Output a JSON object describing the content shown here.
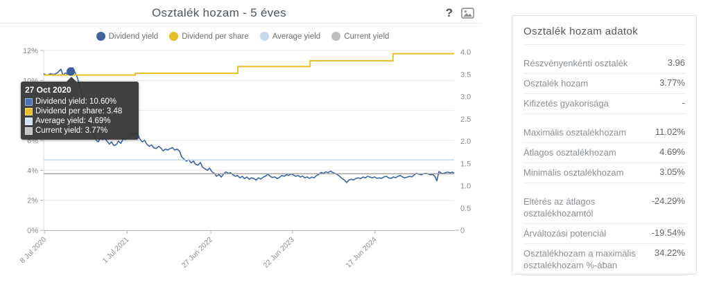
{
  "header": {
    "title": "Osztalék hozam - 5 éves",
    "help_icon": "?",
    "image_icon": "export-image"
  },
  "legend": [
    {
      "label": "Dividend yield",
      "color": "#41639c"
    },
    {
      "label": "Dividend per share",
      "color": "#e5bf2b"
    },
    {
      "label": "Average yield",
      "color": "#c7d8eb"
    },
    {
      "label": "Current yield",
      "color": "#bdbdbd"
    }
  ],
  "tooltip": {
    "date": "27 Oct 2020",
    "rows": [
      {
        "label": "Dividend yield",
        "value": "10.60%",
        "color": "#4a72b8"
      },
      {
        "label": "Dividend per share",
        "value": "3.48",
        "color": "#e9c229"
      },
      {
        "label": "Average yield",
        "value": "4.69%",
        "color": "#d3e2f2"
      },
      {
        "label": "Current yield",
        "value": "3.77%",
        "color": "#c4c4c4"
      }
    ]
  },
  "chart_data": {
    "type": "line",
    "title": "Osztalék hozam - 5 éves",
    "grid": true,
    "legend_position": "top",
    "y_left": {
      "unit": "%",
      "min": 0,
      "max": 12,
      "ticks": [
        0,
        2,
        4,
        6,
        8,
        10,
        12
      ]
    },
    "y_right": {
      "unit": "",
      "min": 0,
      "max": 4,
      "ticks": [
        0,
        0.5,
        1,
        1.5,
        2,
        2.5,
        3,
        3.5,
        4
      ]
    },
    "x_ticks": [
      {
        "label": "8 Jul 2020",
        "pos": 0.002
      },
      {
        "label": "1 Jul 2021",
        "pos": 0.203
      },
      {
        "label": "27 Jun 2022",
        "pos": 0.407
      },
      {
        "label": "22 Jun 2023",
        "pos": 0.606
      },
      {
        "label": "17 Jun 2024",
        "pos": 0.807
      }
    ],
    "marker": {
      "series": "Dividend yield",
      "pos": 0.066,
      "value": 10.6,
      "date": "27 Oct 2020"
    },
    "series": [
      {
        "name": "Dividend yield",
        "axis": "left",
        "color": "#3e63a4",
        "style": "line",
        "points": [
          [
            0,
            10.45
          ],
          [
            0.008,
            10.35
          ],
          [
            0.016,
            10.45
          ],
          [
            0.025,
            10.4
          ],
          [
            0.034,
            10.52
          ],
          [
            0.042,
            10.75
          ],
          [
            0.047,
            10.35
          ],
          [
            0.053,
            10.5
          ],
          [
            0.059,
            10.42
          ],
          [
            0.066,
            10.6
          ],
          [
            0.071,
            10.85
          ],
          [
            0.076,
            10.55
          ],
          [
            0.082,
            10.2
          ],
          [
            0.09,
            9.4
          ],
          [
            0.099,
            8.3
          ],
          [
            0.108,
            7.3
          ],
          [
            0.117,
            6.7
          ],
          [
            0.122,
            6.45
          ],
          [
            0.128,
            6
          ],
          [
            0.133,
            5.9
          ],
          [
            0.138,
            6.15
          ],
          [
            0.143,
            6.05
          ],
          [
            0.149,
            6.15
          ],
          [
            0.154,
            5.95
          ],
          [
            0.16,
            5.75
          ],
          [
            0.165,
            5.9
          ],
          [
            0.171,
            5.65
          ],
          [
            0.177,
            5.72
          ],
          [
            0.182,
            5.95
          ],
          [
            0.188,
            5.8
          ],
          [
            0.194,
            6.1
          ],
          [
            0.2,
            6.05
          ],
          [
            0.207,
            6.3
          ],
          [
            0.213,
            6.55
          ],
          [
            0.218,
            6.35
          ],
          [
            0.223,
            6.5
          ],
          [
            0.229,
            6.45
          ],
          [
            0.234,
            6.1
          ],
          [
            0.24,
            5.9
          ],
          [
            0.246,
            6
          ],
          [
            0.251,
            5.75
          ],
          [
            0.257,
            5.6
          ],
          [
            0.263,
            5.7
          ],
          [
            0.268,
            5.5
          ],
          [
            0.274,
            5.45
          ],
          [
            0.28,
            5.6
          ],
          [
            0.285,
            5.5
          ],
          [
            0.291,
            5.3
          ],
          [
            0.297,
            5.42
          ],
          [
            0.302,
            5.35
          ],
          [
            0.308,
            5.45
          ],
          [
            0.314,
            5.52
          ],
          [
            0.319,
            5.35
          ],
          [
            0.325,
            5.42
          ],
          [
            0.331,
            5.28
          ],
          [
            0.336,
            4.9
          ],
          [
            0.342,
            4.75
          ],
          [
            0.348,
            4.6
          ],
          [
            0.353,
            4.72
          ],
          [
            0.359,
            4.5
          ],
          [
            0.365,
            4.62
          ],
          [
            0.37,
            4.4
          ],
          [
            0.376,
            4.35
          ],
          [
            0.382,
            4.52
          ],
          [
            0.387,
            4.2
          ],
          [
            0.393,
            4.1
          ],
          [
            0.399,
            4
          ],
          [
            0.404,
            4.15
          ],
          [
            0.41,
            3.9
          ],
          [
            0.416,
            3.8
          ],
          [
            0.421,
            3.6
          ],
          [
            0.427,
            3.72
          ],
          [
            0.433,
            3.55
          ],
          [
            0.438,
            3.75
          ],
          [
            0.444,
            3.9
          ],
          [
            0.45,
            3.8
          ],
          [
            0.455,
            3.85
          ],
          [
            0.461,
            3.7
          ],
          [
            0.467,
            3.6
          ],
          [
            0.472,
            3.66
          ],
          [
            0.478,
            3.5
          ],
          [
            0.484,
            3.6
          ],
          [
            0.489,
            3.45
          ],
          [
            0.495,
            3.55
          ],
          [
            0.501,
            3.4
          ],
          [
            0.506,
            3.5
          ],
          [
            0.512,
            3.45
          ],
          [
            0.518,
            3.35
          ],
          [
            0.523,
            3.5
          ],
          [
            0.529,
            3.42
          ],
          [
            0.535,
            3.55
          ],
          [
            0.54,
            3.6
          ],
          [
            0.546,
            3.75
          ],
          [
            0.552,
            3.6
          ],
          [
            0.557,
            3.52
          ],
          [
            0.563,
            3.56
          ],
          [
            0.569,
            3.45
          ],
          [
            0.574,
            3.52
          ],
          [
            0.58,
            3.65
          ],
          [
            0.586,
            3.6
          ],
          [
            0.591,
            3.7
          ],
          [
            0.597,
            3.66
          ],
          [
            0.603,
            3.76
          ],
          [
            0.608,
            3.7
          ],
          [
            0.614,
            3.6
          ],
          [
            0.62,
            3.66
          ],
          [
            0.625,
            3.55
          ],
          [
            0.631,
            3.62
          ],
          [
            0.636,
            3.5
          ],
          [
            0.642,
            3.56
          ],
          [
            0.648,
            3.46
          ],
          [
            0.653,
            3.55
          ],
          [
            0.659,
            3.5
          ],
          [
            0.665,
            3.66
          ],
          [
            0.67,
            3.72
          ],
          [
            0.676,
            3.86
          ],
          [
            0.682,
            3.8
          ],
          [
            0.687,
            3.9
          ],
          [
            0.693,
            3.85
          ],
          [
            0.699,
            3.95
          ],
          [
            0.704,
            3.86
          ],
          [
            0.71,
            3.8
          ],
          [
            0.716,
            3.7
          ],
          [
            0.721,
            3.6
          ],
          [
            0.727,
            3.45
          ],
          [
            0.733,
            3.35
          ],
          [
            0.738,
            3.18
          ],
          [
            0.744,
            3.36
          ],
          [
            0.75,
            3.4
          ],
          [
            0.755,
            3.35
          ],
          [
            0.761,
            3.46
          ],
          [
            0.767,
            3.5
          ],
          [
            0.772,
            3.44
          ],
          [
            0.778,
            3.55
          ],
          [
            0.784,
            3.5
          ],
          [
            0.789,
            3.6
          ],
          [
            0.795,
            3.55
          ],
          [
            0.801,
            3.5
          ],
          [
            0.806,
            3.56
          ],
          [
            0.812,
            3.46
          ],
          [
            0.818,
            3.5
          ],
          [
            0.823,
            3.46
          ],
          [
            0.829,
            3.56
          ],
          [
            0.835,
            3.6
          ],
          [
            0.84,
            3.5
          ],
          [
            0.846,
            3.46
          ],
          [
            0.852,
            3.56
          ],
          [
            0.857,
            3.5
          ],
          [
            0.863,
            3.6
          ],
          [
            0.869,
            3.66
          ],
          [
            0.874,
            3.56
          ],
          [
            0.88,
            3.5
          ],
          [
            0.886,
            3.55
          ],
          [
            0.891,
            3.6
          ],
          [
            0.897,
            3.56
          ],
          [
            0.903,
            3.7
          ],
          [
            0.908,
            3.8
          ],
          [
            0.914,
            3.75
          ],
          [
            0.92,
            3.7
          ],
          [
            0.925,
            3.76
          ],
          [
            0.931,
            3.8
          ],
          [
            0.936,
            3.76
          ],
          [
            0.942,
            3.7
          ],
          [
            0.948,
            3.72
          ],
          [
            0.953,
            3.6
          ],
          [
            0.958,
            3.3
          ],
          [
            0.963,
            3.92
          ],
          [
            0.968,
            3.82
          ],
          [
            0.973,
            3.78
          ],
          [
            0.979,
            3.85
          ],
          [
            0.985,
            3.88
          ],
          [
            0.99,
            3.83
          ],
          [
            0.996,
            3.88
          ],
          [
            1,
            3.8
          ]
        ]
      },
      {
        "name": "Dividend per share",
        "axis": "right",
        "color": "#e7c12b",
        "style": "step",
        "points": [
          [
            0,
            3.48
          ],
          [
            0.223,
            3.48
          ],
          [
            0.223,
            3.52
          ],
          [
            0.473,
            3.52
          ],
          [
            0.473,
            3.67
          ],
          [
            0.649,
            3.67
          ],
          [
            0.649,
            3.8
          ],
          [
            0.851,
            3.8
          ],
          [
            0.851,
            3.96
          ],
          [
            1,
            3.96
          ]
        ]
      },
      {
        "name": "Average yield",
        "axis": "left",
        "color": "#c4d6ec",
        "style": "hline",
        "value": 4.69
      },
      {
        "name": "Current yield",
        "axis": "left",
        "color": "#9f9f9f",
        "style": "hline",
        "value": 3.77
      }
    ]
  },
  "panel": {
    "title": "Osztalék hozam adatok",
    "groups": [
      [
        {
          "label": "Részvényenkénti osztalék",
          "value": "3.96"
        },
        {
          "label": "Osztalék hozam",
          "value": "3.77%"
        },
        {
          "label": "Kifizetés gyakorisága",
          "value": "-"
        }
      ],
      [
        {
          "label": "Maximális osztalékhozam",
          "value": "11.02%"
        },
        {
          "label": "Átlagos osztalékhozam",
          "value": "4.69%"
        },
        {
          "label": "Minimális osztalékhozam",
          "value": "3.05%"
        }
      ],
      [
        {
          "label": "Eltérés az átlagos osztalékhozamtól",
          "value": "-24.29%"
        },
        {
          "label": "Árváltozási potenciál",
          "value": "-19.54%"
        },
        {
          "label": "Osztalékhozam a maximális osztalékhozam %-ában",
          "value": "34.22%"
        }
      ]
    ]
  }
}
